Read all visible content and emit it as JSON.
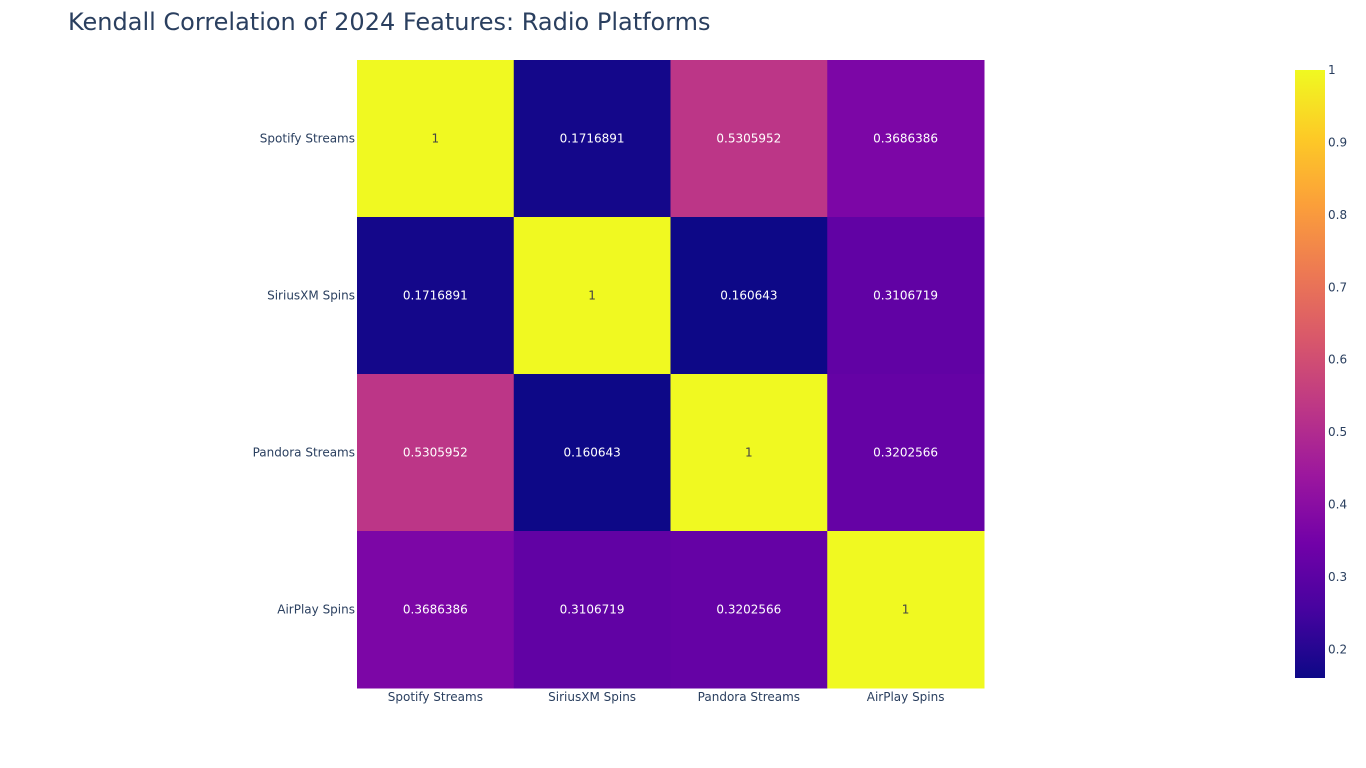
{
  "chart_data": {
    "type": "heatmap",
    "title": "Kendall Correlation of 2024 Features: Radio Platforms",
    "x_categories": [
      "Spotify Streams",
      "SiriusXM Spins",
      "Pandora Streams",
      "AirPlay Spins"
    ],
    "y_categories": [
      "Spotify Streams",
      "SiriusXM Spins",
      "Pandora Streams",
      "AirPlay Spins"
    ],
    "z": [
      [
        1,
        0.1716891,
        0.5305952,
        0.3686386
      ],
      [
        0.1716891,
        1,
        0.160643,
        0.3106719
      ],
      [
        0.5305952,
        0.160643,
        1,
        0.3202566
      ],
      [
        0.3686386,
        0.3106719,
        0.3202566,
        1
      ]
    ],
    "cell_text": [
      [
        "1",
        "0.1716891",
        "0.5305952",
        "0.3686386"
      ],
      [
        "0.1716891",
        "1",
        "0.160643",
        "0.3106719"
      ],
      [
        "0.5305952",
        "0.160643",
        "1",
        "0.3202566"
      ],
      [
        "0.3686386",
        "0.3106719",
        "0.3202566",
        "1"
      ]
    ],
    "zlim": [
      0.160643,
      1
    ],
    "colorscale": [
      "#0d0887",
      "#46039f",
      "#7201a8",
      "#9c179e",
      "#bd3786",
      "#d8576b",
      "#ed7953",
      "#fb9f3a",
      "#fdca26",
      "#f0f921"
    ],
    "colorbar_ticks": [
      "0.2",
      "0.3",
      "0.4",
      "0.5",
      "0.6",
      "0.7",
      "0.8",
      "0.9",
      "1"
    ],
    "colorbar_tick_values": [
      0.2,
      0.3,
      0.4,
      0.5,
      0.6,
      0.7,
      0.8,
      0.9,
      1
    ],
    "text_color_dark": "#ffffff",
    "text_color_light": "#444444",
    "axis_text_color": "#2a3f5f"
  }
}
